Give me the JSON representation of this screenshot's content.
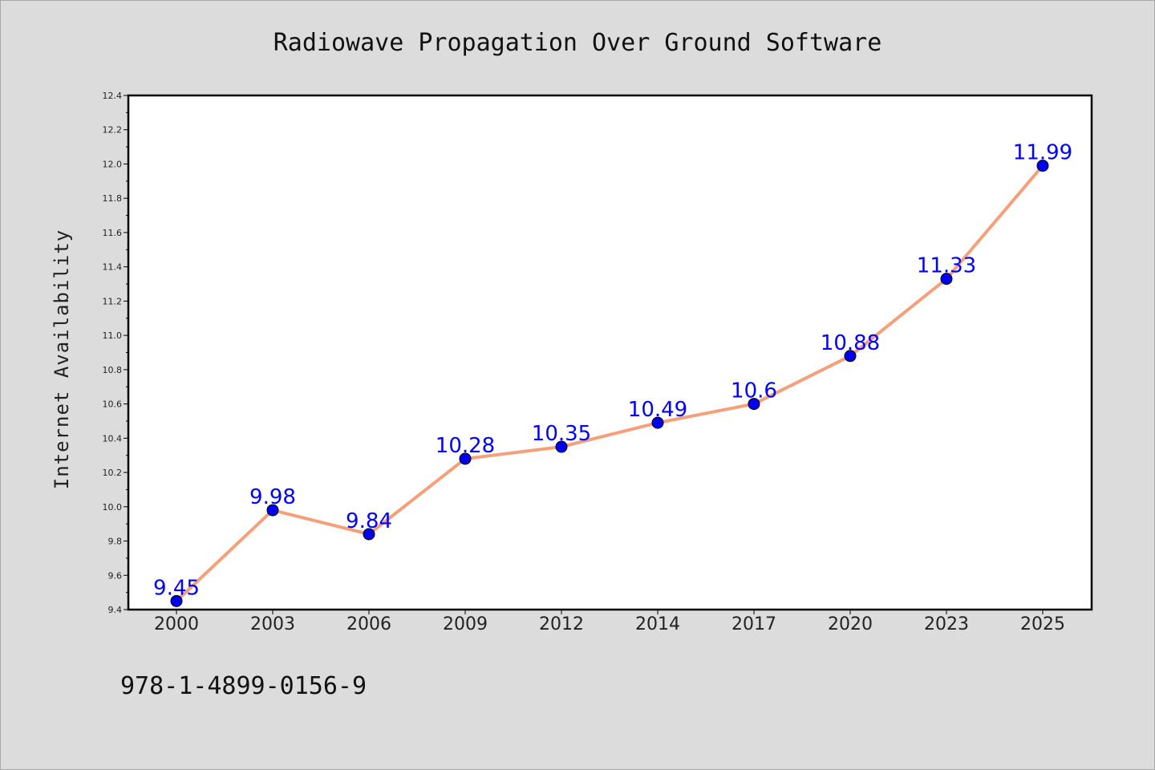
{
  "chart_data": {
    "type": "line",
    "title": "Radiowave Propagation Over Ground Software",
    "xlabel": "",
    "ylabel": "Internet Availability",
    "categories": [
      "2000",
      "2003",
      "2006",
      "2009",
      "2012",
      "2014",
      "2017",
      "2020",
      "2023",
      "2025"
    ],
    "values": [
      9.45,
      9.98,
      9.84,
      10.28,
      10.35,
      10.49,
      10.6,
      10.88,
      11.33,
      11.99
    ],
    "data_labels": [
      "9.45",
      "9.98",
      "9.84",
      "10.28",
      "10.35",
      "10.49",
      "10.6",
      "10.88",
      "11.33",
      "11.99"
    ],
    "ylim": [
      9.4,
      12.4
    ],
    "yticks": [
      "9.4",
      "9.6",
      "9.8",
      "10.0",
      "10.2",
      "10.4",
      "10.6",
      "10.8",
      "11.0",
      "11.2",
      "11.4",
      "11.6",
      "11.8",
      "12.0",
      "12.2",
      "12.4"
    ],
    "grid": false,
    "line_color": "#f4a07a",
    "marker_color": "#0000ee",
    "label_color": "#0000ff"
  },
  "footer": {
    "isbn": "978-1-4899-0156-9"
  }
}
